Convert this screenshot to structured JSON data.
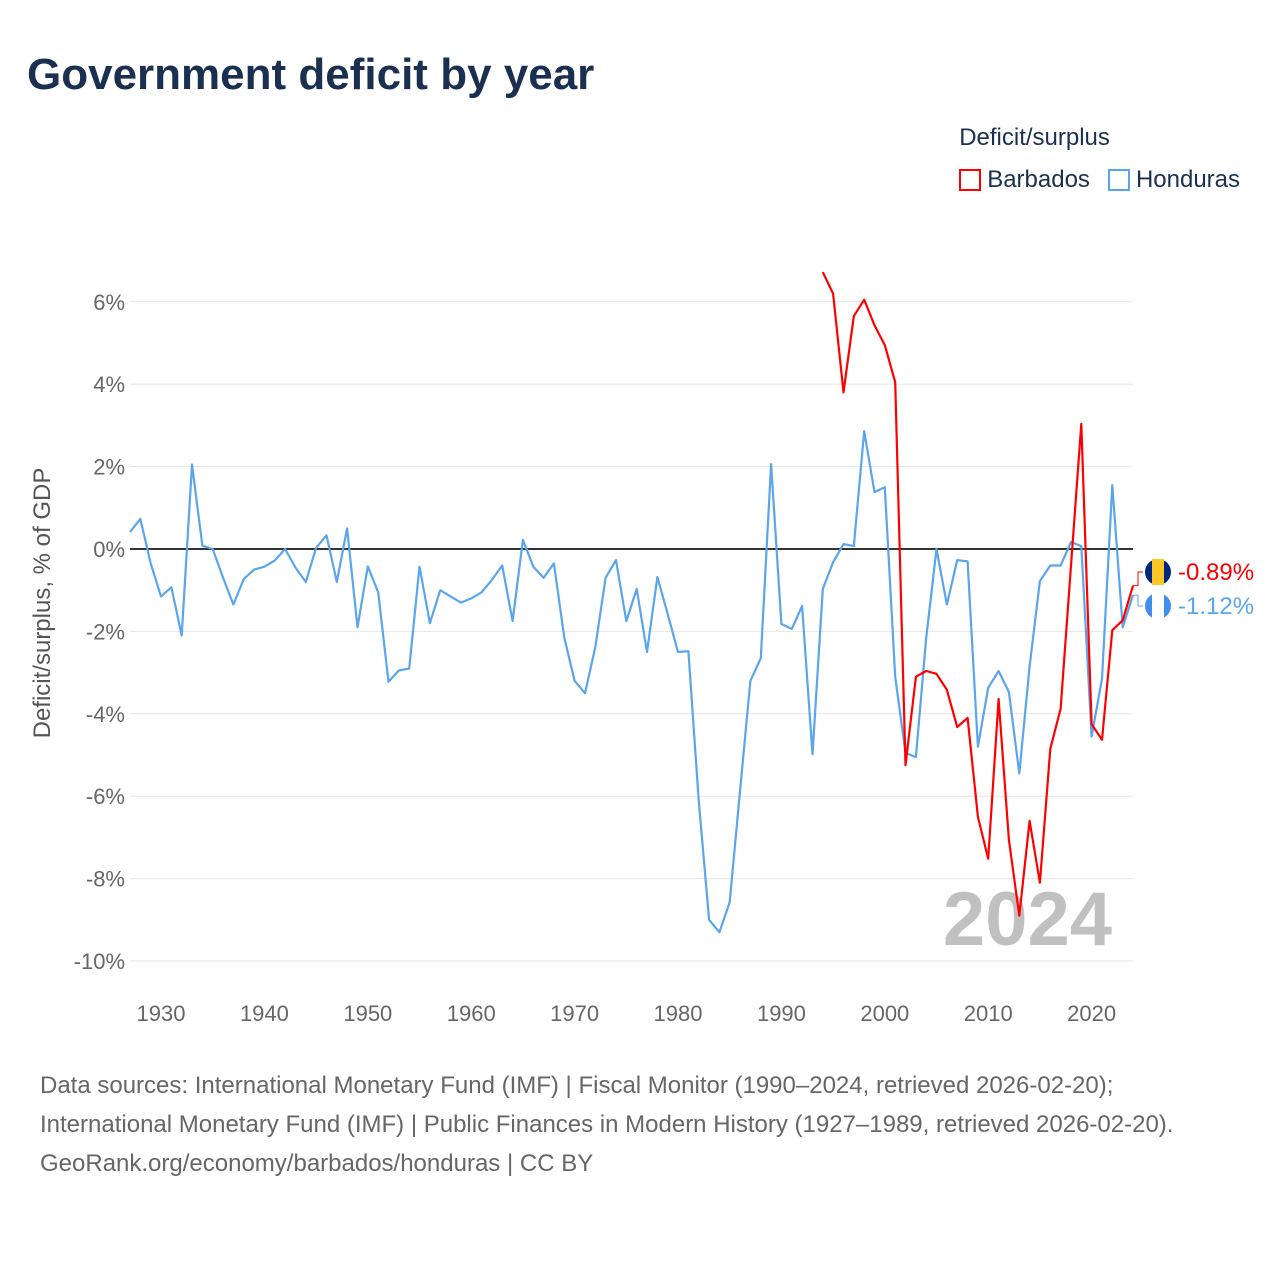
{
  "title": "Government deficit by year",
  "legend": {
    "title": "Deficit/surplus",
    "items": [
      {
        "name": "Barbados",
        "color": "#ff0000"
      },
      {
        "name": "Honduras",
        "color": "#5aa5eb"
      }
    ]
  },
  "year_watermark": "2024",
  "end_labels": {
    "Barbados": "-0.89%",
    "Honduras": "-1.12%"
  },
  "sources": {
    "line1": "Data sources: International Monetary Fund (IMF) | Fiscal Monitor (1990–2024, retrieved 2026-02-20); International Monetary Fund (IMF) | Public Finances in Modern History (1927–1989, retrieved 2026-02-20).",
    "line2": "GeoRank.org/economy/barbados/honduras | CC BY"
  },
  "chart_data": {
    "type": "line",
    "title": "Government deficit by year",
    "xlabel": "",
    "ylabel": "Deficit/surplus, % of GDP",
    "xlim": [
      1927,
      2024
    ],
    "ylim": [
      -10,
      6
    ],
    "xticks": [
      1930,
      1940,
      1950,
      1960,
      1970,
      1980,
      1990,
      2000,
      2010,
      2020
    ],
    "yticks": [
      6,
      4,
      2,
      0,
      -2,
      -4,
      -6,
      -8,
      -10
    ],
    "ytick_labels": [
      "6%",
      "4%",
      "2%",
      "0%",
      "-2%",
      "-4%",
      "-6%",
      "-8%",
      "-10%"
    ],
    "grid": true,
    "legend_position": "top-right",
    "series": [
      {
        "name": "Honduras",
        "color": "#5aa5eb",
        "start_year": 1927,
        "values": [
          0.41,
          0.73,
          -0.35,
          -1.15,
          -0.93,
          -2.1,
          2.05,
          0.08,
          0.0,
          -0.7,
          -1.35,
          -0.73,
          -0.5,
          -0.43,
          -0.28,
          0.0,
          -0.45,
          -0.8,
          0.03,
          0.33,
          -0.8,
          0.5,
          -1.9,
          -0.42,
          -1.05,
          -3.22,
          -2.95,
          -2.9,
          -0.43,
          -1.8,
          -1.0,
          -1.15,
          -1.3,
          -1.2,
          -1.05,
          -0.75,
          -0.4,
          -1.75,
          0.22,
          -0.43,
          -0.7,
          -0.35,
          -2.15,
          -3.2,
          -3.5,
          -2.38,
          -0.7,
          -0.27,
          -1.75,
          -0.97,
          -2.5,
          -0.68,
          -1.58,
          -2.5,
          -2.48,
          -6.1,
          -9.0,
          -9.3,
          -8.57,
          -5.85,
          -3.2,
          -2.65,
          2.06,
          -1.82,
          -1.94,
          -1.38,
          -4.98,
          -0.97,
          -0.32,
          0.12,
          0.07,
          2.86,
          1.38,
          1.5,
          -3.1,
          -4.95,
          -5.05,
          -2.16,
          0.0,
          -1.35,
          -0.27,
          -0.3,
          -4.8,
          -3.37,
          -2.96,
          -3.47,
          -5.45,
          -2.85,
          -0.78,
          -0.4,
          -0.4,
          0.17,
          0.07,
          -4.55,
          -3.15,
          1.55,
          -1.9,
          -1.12
        ]
      },
      {
        "name": "Barbados",
        "color": "#ff0000",
        "start_year": 1994,
        "values": [
          6.72,
          6.2,
          3.8,
          5.65,
          6.05,
          5.43,
          4.95,
          4.05,
          -5.25,
          -3.1,
          -2.96,
          -3.03,
          -3.42,
          -4.32,
          -4.1,
          -6.5,
          -7.52,
          -3.64,
          -7.06,
          -8.9,
          -6.6,
          -8.1,
          -4.85,
          -3.88,
          -0.4,
          3.04,
          -4.25,
          -4.63,
          -1.97,
          -1.73,
          -0.89
        ]
      }
    ]
  }
}
